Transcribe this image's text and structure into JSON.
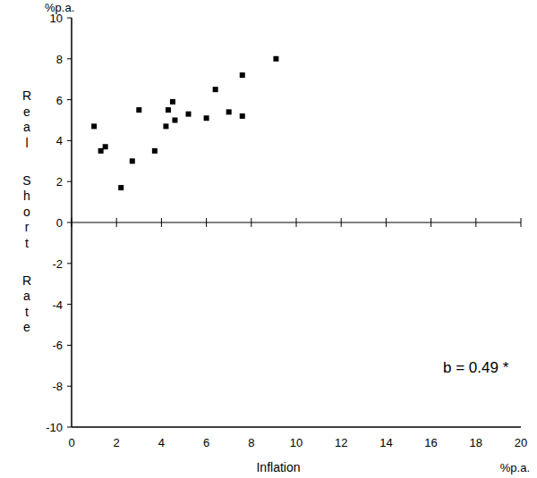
{
  "chart_data": {
    "type": "scatter",
    "x_label": "Inflation",
    "y_label": "Real Short Rate",
    "x_unit": "%p.a.",
    "y_unit": "%p.a.",
    "annotation": "b = 0.49 *",
    "color": "#000000",
    "marker": "square",
    "x": [
      1.0,
      1.3,
      1.5,
      2.2,
      2.7,
      3.0,
      3.7,
      4.2,
      4.3,
      4.5,
      4.6,
      5.2,
      6.0,
      6.4,
      7.0,
      7.6,
      7.6,
      9.1
    ],
    "values": [
      4.7,
      3.5,
      3.7,
      1.7,
      3.0,
      5.5,
      3.5,
      4.7,
      5.5,
      5.9,
      5.0,
      5.3,
      5.1,
      6.5,
      5.4,
      7.2,
      5.2,
      8.0
    ],
    "xlim": [
      0,
      20
    ],
    "xticks": [
      0,
      2,
      4,
      6,
      8,
      10,
      12,
      14,
      16,
      18,
      20
    ],
    "ylim": [
      -10,
      10
    ],
    "yticks": [
      -10,
      -8,
      -6,
      -4,
      -2,
      0,
      2,
      4,
      6,
      8,
      10
    ],
    "grid": false
  }
}
